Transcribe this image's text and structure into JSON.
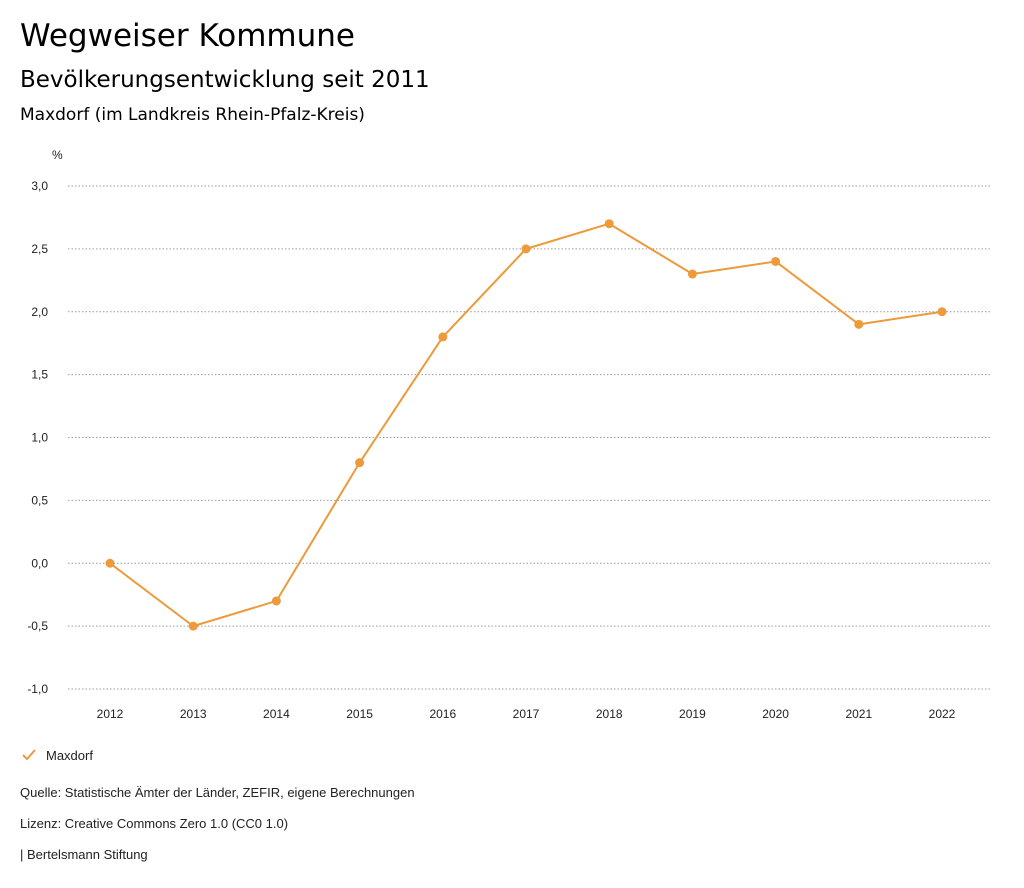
{
  "header": {
    "title": "Wegweiser Kommune",
    "subtitle": "Bevölkerungsentwicklung seit 2011",
    "region": "Maxdorf (im Landkreis Rhein-Pfalz-Kreis)"
  },
  "chart_data": {
    "type": "line",
    "ylabel": "%",
    "x": [
      "2012",
      "2013",
      "2014",
      "2015",
      "2016",
      "2017",
      "2018",
      "2019",
      "2020",
      "2021",
      "2022"
    ],
    "series": [
      {
        "name": "Maxdorf",
        "color": "#EC9A3A",
        "values": [
          0.0,
          -0.5,
          -0.3,
          0.8,
          1.8,
          2.5,
          2.7,
          2.3,
          2.4,
          1.9,
          2.0
        ]
      }
    ],
    "ylim": [
      -1.0,
      3.0
    ],
    "yticks": [
      "-1,0",
      "-0,5",
      "0,0",
      "0,5",
      "1,0",
      "1,5",
      "2,0",
      "2,5",
      "3,0"
    ],
    "grid": true,
    "legend_position": "bottom-left"
  },
  "legend": {
    "label": "Maxdorf",
    "icon": "check-icon",
    "color": "#EC9A3A"
  },
  "footer": {
    "source": "Quelle: Statistische Ämter der Länder, ZEFIR, eigene Berechnungen",
    "license": "Lizenz: Creative Commons Zero 1.0 (CC0 1.0)",
    "publisher": "| Bertelsmann Stiftung"
  }
}
